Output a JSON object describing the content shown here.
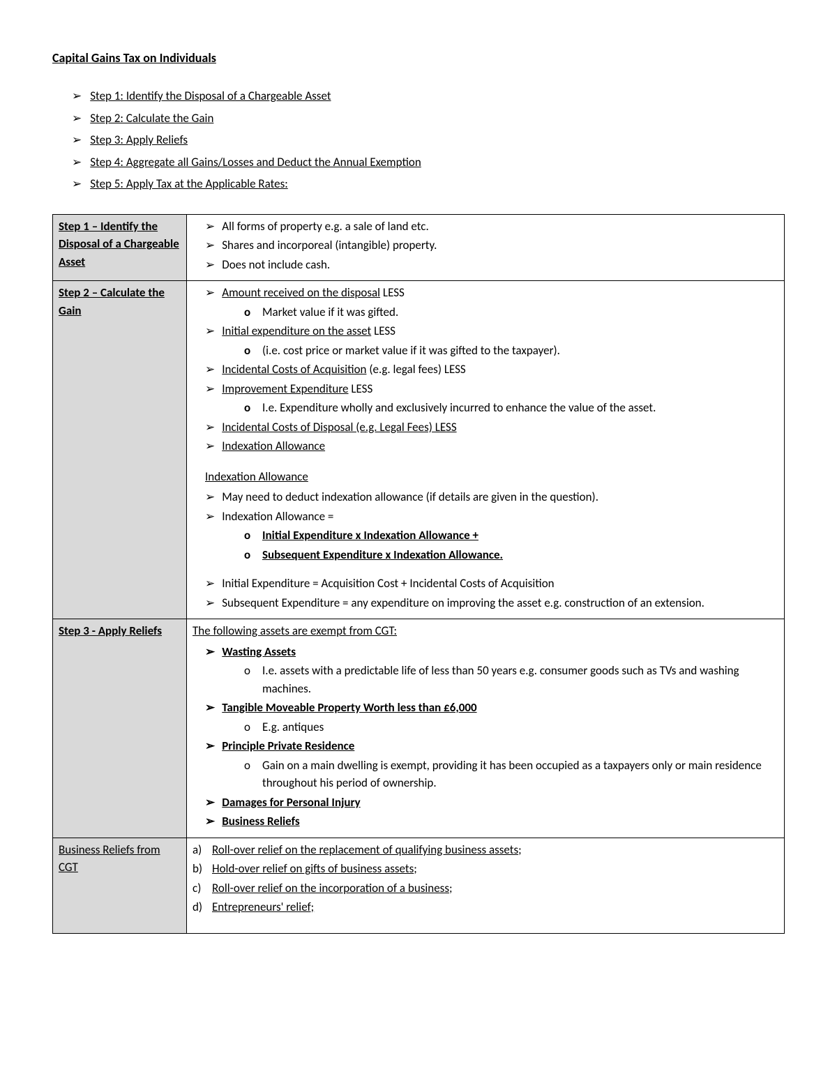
{
  "title": "Capital Gains Tax on Individuals",
  "steps": [
    "Step 1: Identify the Disposal of a Chargeable Asset",
    "Step 2: Calculate the Gain",
    "Step 3: Apply Reliefs",
    "Step 4: Aggregate all Gains/Losses and Deduct the Annual Exemption",
    "Step 5: Apply Tax at the Applicable Rates:"
  ],
  "row1": {
    "label": "Step 1 – Identify the Disposal of a Chargeable Asset",
    "items": [
      "All forms of property e.g. a sale of land etc.",
      "Shares and incorporeal (intangible) property.",
      "Does not include cash."
    ]
  },
  "row2": {
    "label": "Step 2 – Calculate the Gain",
    "a1": "Amount received on the disposal",
    "a1s": "Market value if it was gifted.",
    "a2": "Initial expenditure on the asset",
    "a2s": "(i.e. cost price or market value if it was gifted to the taxpayer).",
    "a3": "Incidental Costs of Acquisition",
    "a3t": " (e.g. legal fees) LESS",
    "a4": "Improvement Expenditure",
    "a4s": "I.e. Expenditure wholly and exclusively incurred to enhance the value of the asset.",
    "a5": "Incidental Costs of Disposal (e.g. Legal Fees) LESS",
    "a6": "Indexation Allowance",
    "heading": "Indexation Allowance",
    "b1": "May need to deduct indexation allowance (if details are given in the question).",
    "b2": "Indexation Allowance =",
    "b2s1": "Initial Expenditure x Indexation Allowance +",
    "b2s2": "Subsequent Expenditure x Indexation Allowance.",
    "c1": "Initial Expenditure = Acquisition Cost + Incidental Costs of Acquisition",
    "c2": "Subsequent Expenditure = any expenditure on improving the asset e.g. construction of an extension.",
    "less": " LESS"
  },
  "row3": {
    "label": "Step 3 - Apply Reliefs",
    "intro": "The following assets are exempt from CGT:",
    "i1": "Wasting Assets",
    "i1s": "I.e. assets with a predictable life of less than 50 years e.g. consumer goods such as TVs and washing machines.",
    "i2": "Tangible Moveable Property Worth less than £6,000",
    "i2s": "E.g. antiques",
    "i3": "Principle Private Residence",
    "i3s": "Gain on a main dwelling is exempt, providing it has been occupied as a taxpayers only or main residence throughout his period of ownership.",
    "i4": "Damages for Personal Injury ",
    "i5": "Business Reliefs"
  },
  "row4": {
    "label": "Business Reliefs from CGT",
    "a": "Roll-over relief on the replacement of qualifying business assets",
    "b": "Hold-over relief on gifts of business assets",
    "c": "Roll-over relief on the incorporation of a business",
    "d": "Entrepreneurs' relief;"
  }
}
